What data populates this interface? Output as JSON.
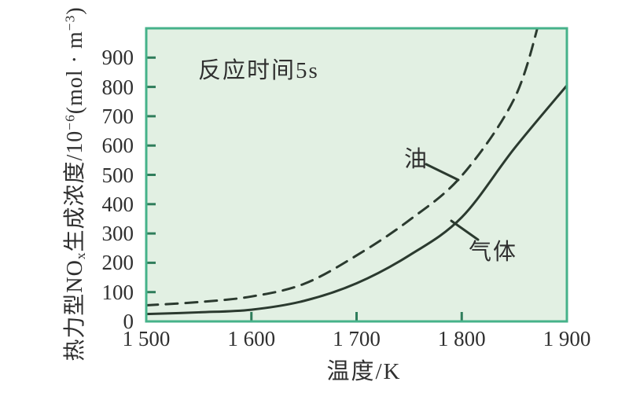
{
  "chart_data": {
    "type": "line",
    "title": "",
    "annotation": "反应时间5s",
    "xlabel": "温度/K",
    "ylabel": "热力型NOx生成浓度/10−6(mol · m−3)",
    "ylabel_segments": [
      {
        "t": "热力型NO",
        "s": "n"
      },
      {
        "t": "x",
        "s": "sub"
      },
      {
        "t": "生成浓度/10",
        "s": "n"
      },
      {
        "t": "−6",
        "s": "sup"
      },
      {
        "t": "(mol · m",
        "s": "n"
      },
      {
        "t": "−3",
        "s": "sup"
      },
      {
        "t": ")",
        "s": "n"
      }
    ],
    "xlim": [
      1500,
      1900
    ],
    "ylim": [
      0,
      1000
    ],
    "x_ticks": [
      1500,
      1600,
      1700,
      1800,
      1900
    ],
    "x_tick_labels": [
      "1 500",
      "1 600",
      "1 700",
      "1 800",
      "1 900"
    ],
    "y_ticks": [
      0,
      100,
      200,
      300,
      400,
      500,
      600,
      700,
      800,
      900
    ],
    "grid": false,
    "legend": "inline-labels",
    "series": [
      {
        "name": "油",
        "line": "dashed",
        "x": [
          1500,
          1550,
          1600,
          1650,
          1700,
          1750,
          1800,
          1850,
          1875
        ],
        "y": [
          55,
          66,
          85,
          128,
          225,
          345,
          497,
          760,
          1040
        ]
      },
      {
        "name": "气体",
        "line": "solid",
        "x": [
          1500,
          1550,
          1600,
          1650,
          1700,
          1750,
          1800,
          1850,
          1900
        ],
        "y": [
          25,
          31,
          40,
          70,
          130,
          225,
          355,
          590,
          805
        ]
      }
    ],
    "colors": {
      "plot_bg": "#e2f0e3",
      "plot_border": "#46b28a",
      "tick": "#2f7d5b",
      "curve": "#2b3a2f",
      "text": "#2f2f2f",
      "page_bg": "#ffffff"
    }
  }
}
